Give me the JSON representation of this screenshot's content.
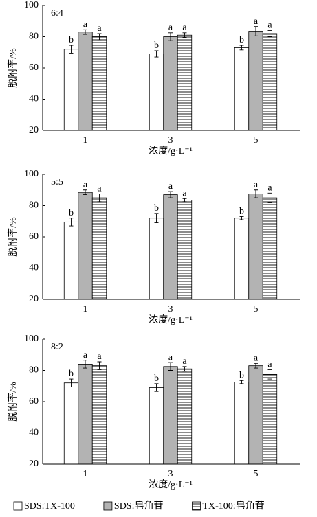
{
  "chart_data": [
    {
      "type": "bar",
      "panel_label": "6:4",
      "xlabel": "浓度/g·L⁻¹",
      "ylabel": "脱附率/%",
      "categories": [
        "1",
        "3",
        "5"
      ],
      "ylim": [
        20,
        100
      ],
      "yticks": [
        20,
        40,
        60,
        80,
        100
      ],
      "series": [
        {
          "color": "#ffffff",
          "values": [
            72,
            69,
            73
          ],
          "errors": [
            2.5,
            2,
            1.5
          ],
          "letters": [
            "b",
            "b",
            "b"
          ]
        },
        {
          "color": "#b3b3b3",
          "values": [
            83,
            80,
            83.5
          ],
          "errors": [
            1.5,
            2.5,
            3
          ],
          "letters": [
            "a",
            "a",
            "a"
          ]
        },
        {
          "color": "#ffffff",
          "pattern": "horizontal-lines",
          "values": [
            80,
            81,
            82
          ],
          "errors": [
            2,
            1.5,
            2
          ],
          "letters": [
            "a",
            "a",
            "a"
          ]
        }
      ]
    },
    {
      "type": "bar",
      "panel_label": "5:5",
      "xlabel": "浓度/g·L⁻¹",
      "ylabel": "脱附率/%",
      "categories": [
        "1",
        "3",
        "5"
      ],
      "ylim": [
        20,
        100
      ],
      "yticks": [
        20,
        40,
        60,
        80,
        100
      ],
      "series": [
        {
          "color": "#ffffff",
          "values": [
            69.5,
            72,
            72
          ],
          "errors": [
            2.5,
            3,
            1
          ],
          "letters": [
            "b",
            "b",
            "b"
          ]
        },
        {
          "color": "#b3b3b3",
          "values": [
            88.5,
            87,
            87.5
          ],
          "errors": [
            1.5,
            2,
            2.5
          ],
          "letters": [
            "a",
            "a",
            "a"
          ]
        },
        {
          "color": "#ffffff",
          "pattern": "horizontal-lines",
          "values": [
            85,
            83.5,
            85
          ],
          "errors": [
            2.5,
            1,
            3
          ],
          "letters": [
            "a",
            "a",
            "a"
          ]
        }
      ]
    },
    {
      "type": "bar",
      "panel_label": "8:2",
      "xlabel": "浓度/g·L⁻¹",
      "ylabel": "脱附率/%",
      "categories": [
        "1",
        "3",
        "5"
      ],
      "ylim": [
        20,
        100
      ],
      "yticks": [
        20,
        40,
        60,
        80,
        100
      ],
      "series": [
        {
          "name": "SDS:TX-100",
          "color": "#ffffff",
          "values": [
            72,
            69,
            72.5
          ],
          "errors": [
            2.5,
            2.5,
            1
          ],
          "letters": [
            "b",
            "b",
            "b"
          ]
        },
        {
          "name": "SDS:皂角苷",
          "color": "#b3b3b3",
          "values": [
            84,
            82.5,
            83
          ],
          "errors": [
            2.5,
            2.5,
            1.5
          ],
          "letters": [
            "a",
            "a",
            "a"
          ]
        },
        {
          "name": "TX-100:皂角苷",
          "color": "#ffffff",
          "pattern": "horizontal-lines",
          "values": [
            83,
            81,
            77.5
          ],
          "errors": [
            2.5,
            1.5,
            3
          ],
          "letters": [
            "a",
            "a",
            "a"
          ]
        }
      ]
    }
  ]
}
